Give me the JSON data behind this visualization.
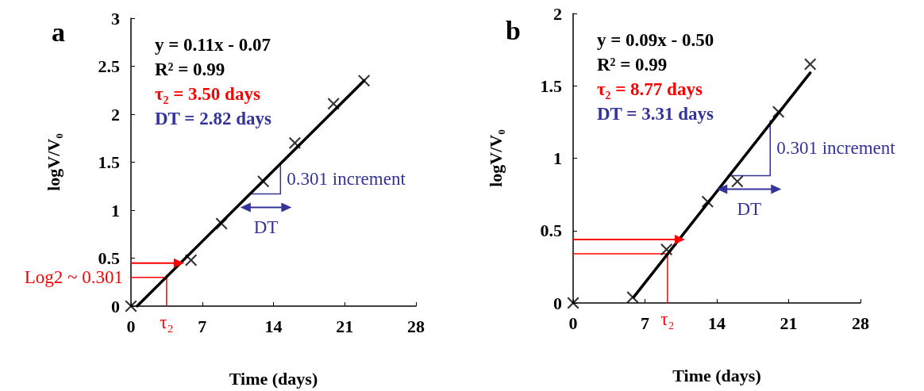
{
  "chart_data": [
    {
      "type": "scatter",
      "title": "a",
      "xlabel": "Time (days)",
      "ylabel": "logV/V₀",
      "xlim": [
        0,
        28
      ],
      "xticks": [
        0,
        7,
        14,
        21,
        28
      ],
      "ylim": [
        0,
        3
      ],
      "yticks": [
        0,
        0.5,
        1,
        1.5,
        2,
        2.5,
        3
      ],
      "annotations": [
        "y = 0.11x - 0.07",
        "R² = 0.99",
        "τ₂ = 3.50 days",
        "DT = 2.82 days",
        {
          "text": "Log2 ~ 0.301",
          "x": 0,
          "y": 0.3
        },
        {
          "text": "τ₂",
          "x": 3.5,
          "y": 0
        },
        "0.301 increment",
        "DT"
      ],
      "series": [
        {
          "marker": "cross",
          "color": "#000000",
          "x": [
            0,
            5.9,
            8.9,
            13,
            16.1,
            19.9,
            22.9
          ],
          "values": [
            0,
            0.48,
            0.86,
            1.3,
            1.7,
            2.11,
            2.35
          ]
        },
        {
          "type": "line",
          "marker": "none",
          "color": "#000000",
          "x": [
            0.6,
            22.9
          ],
          "values": [
            0,
            2.35
          ]
        },
        {
          "type": "line",
          "marker": "none",
          "color": "#ff0000",
          "x": [
            0,
            3.5,
            3.5
          ],
          "values": [
            0.3,
            0.3,
            0
          ]
        },
        {
          "type": "line",
          "marker": "none",
          "color": "#333399",
          "x": [
            11.84,
            14.69,
            14.69
          ],
          "values": [
            1.17,
            1.17,
            1.49
          ]
        }
      ]
    },
    {
      "type": "scatter",
      "title": "b",
      "xlabel": "Time (days)",
      "ylabel": "logV/V₀",
      "xlim": [
        0,
        28
      ],
      "xticks": [
        0,
        7,
        14,
        21,
        28
      ],
      "ylim": [
        0,
        2
      ],
      "yticks": [
        0,
        0.5,
        1,
        1.5,
        2
      ],
      "annotations": [
        "y = 0.09x - 0.50",
        "R² = 0.99",
        "τ₂ = 8.77 days",
        "DT = 3.31 days",
        {
          "text": "τ₂",
          "x": 9.2,
          "y": 0
        },
        "0.301 increment",
        "DT"
      ],
      "series": [
        {
          "marker": "cross",
          "color": "#000000",
          "x": [
            0,
            5.8,
            9.1,
            13.1,
            16,
            20,
            23.1
          ],
          "values": [
            0,
            0.04,
            0.37,
            0.7,
            0.84,
            1.32,
            1.65
          ]
        },
        {
          "type": "line",
          "marker": "none",
          "color": "#000000",
          "x": [
            5.9,
            23.1
          ],
          "values": [
            0.04,
            1.59
          ]
        },
        {
          "type": "line",
          "marker": "none",
          "color": "#ff0000",
          "x": [
            0,
            9.2,
            9.2
          ],
          "values": [
            0.34,
            0.34,
            0
          ]
        },
        {
          "type": "line",
          "marker": "none",
          "color": "#333399",
          "x": [
            15.1,
            19.2,
            19.2
          ],
          "values": [
            0.88,
            0.88,
            1.26
          ]
        }
      ]
    }
  ]
}
